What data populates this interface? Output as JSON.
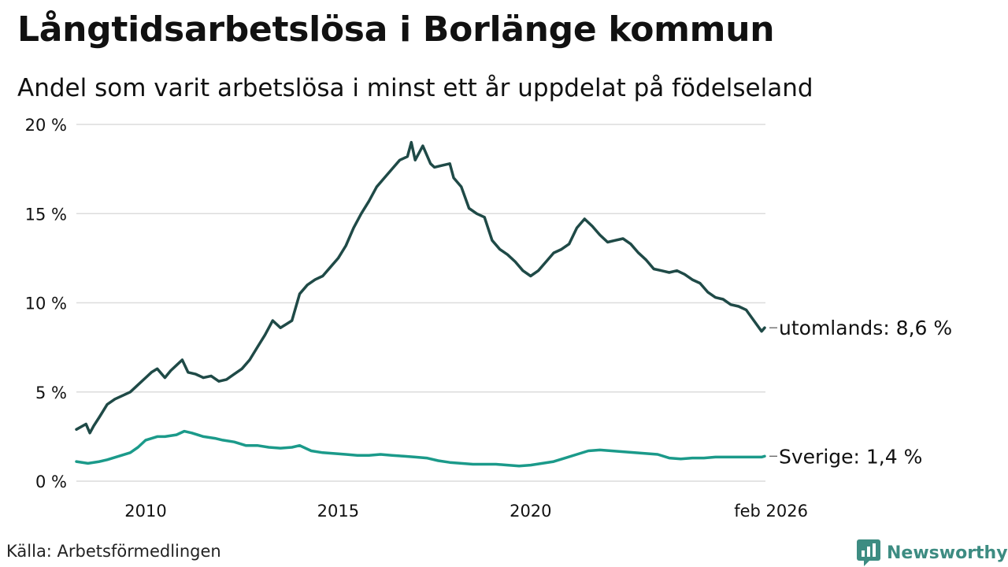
{
  "header": {
    "title": "Långtidsarbetslösa i Borlänge kommun",
    "subtitle": "Andel som varit arbetslösa i minst ett år uppdelat på födelseland"
  },
  "footer": {
    "source": "Källa: Arbetsförmedlingen",
    "brand": "Newsworthy"
  },
  "colors": {
    "utomlands": "#1f4a47",
    "sverige": "#1b9a8a",
    "grid": "#dcdcdc",
    "brand": "#3d8c82"
  },
  "chart_data": {
    "type": "line",
    "title": "Långtidsarbetslösa i Borlänge kommun",
    "ylabel": "",
    "xlabel": "",
    "ylim": [
      0,
      20
    ],
    "xlim": [
      2008.2,
      2026.1
    ],
    "yticks": [
      0,
      5,
      10,
      15,
      20
    ],
    "ytick_labels": [
      "0 %",
      "5 %",
      "10 %",
      "15 %",
      "20 %"
    ],
    "xticks": [
      2010,
      2015,
      2020,
      2026.08
    ],
    "xtick_labels": [
      "2010",
      "2015",
      "2020",
      "feb 2026"
    ],
    "grid": true,
    "series": [
      {
        "name": "utomlands",
        "end_label": "utomlands: 8,6 %",
        "x": [
          2008.2,
          2008.45,
          2008.55,
          2008.65,
          2008.8,
          2009.0,
          2009.2,
          2009.4,
          2009.6,
          2009.8,
          2010.0,
          2010.15,
          2010.3,
          2010.5,
          2010.65,
          2010.8,
          2010.95,
          2011.1,
          2011.3,
          2011.5,
          2011.7,
          2011.9,
          2012.1,
          2012.3,
          2012.5,
          2012.7,
          2012.9,
          2013.1,
          2013.3,
          2013.5,
          2013.65,
          2013.8,
          2014.0,
          2014.2,
          2014.4,
          2014.6,
          2014.8,
          2015.0,
          2015.2,
          2015.4,
          2015.6,
          2015.8,
          2016.0,
          2016.2,
          2016.4,
          2016.6,
          2016.8,
          2016.9,
          2017.0,
          2017.2,
          2017.4,
          2017.5,
          2017.7,
          2017.9,
          2018.0,
          2018.2,
          2018.4,
          2018.6,
          2018.8,
          2019.0,
          2019.2,
          2019.4,
          2019.6,
          2019.8,
          2020.0,
          2020.2,
          2020.4,
          2020.6,
          2020.8,
          2021.0,
          2021.2,
          2021.4,
          2021.6,
          2021.8,
          2022.0,
          2022.2,
          2022.4,
          2022.6,
          2022.8,
          2023.0,
          2023.2,
          2023.4,
          2023.6,
          2023.8,
          2024.0,
          2024.2,
          2024.4,
          2024.6,
          2024.8,
          2025.0,
          2025.2,
          2025.4,
          2025.6,
          2025.8,
          2026.0,
          2026.08
        ],
        "values": [
          2.9,
          3.2,
          2.7,
          3.1,
          3.6,
          4.3,
          4.6,
          4.8,
          5.0,
          5.4,
          5.8,
          6.1,
          6.3,
          5.8,
          6.2,
          6.5,
          6.8,
          6.1,
          6.0,
          5.8,
          5.9,
          5.6,
          5.7,
          6.0,
          6.3,
          6.8,
          7.5,
          8.2,
          9.0,
          8.6,
          8.8,
          9.0,
          10.5,
          11.0,
          11.3,
          11.5,
          12.0,
          12.5,
          13.2,
          14.2,
          15.0,
          15.7,
          16.5,
          17.0,
          17.5,
          18.0,
          18.2,
          19.0,
          18.0,
          18.8,
          17.8,
          17.6,
          17.7,
          17.8,
          17.0,
          16.5,
          15.3,
          15.0,
          14.8,
          13.5,
          13.0,
          12.7,
          12.3,
          11.8,
          11.5,
          11.8,
          12.3,
          12.8,
          13.0,
          13.3,
          14.2,
          14.7,
          14.3,
          13.8,
          13.4,
          13.5,
          13.6,
          13.3,
          12.8,
          12.4,
          11.9,
          11.8,
          11.7,
          11.8,
          11.6,
          11.3,
          11.1,
          10.6,
          10.3,
          10.2,
          9.9,
          9.8,
          9.6,
          9.0,
          8.4,
          8.6
        ]
      },
      {
        "name": "Sverige",
        "end_label": "Sverige: 1,4 %",
        "x": [
          2008.2,
          2008.5,
          2008.8,
          2009.0,
          2009.3,
          2009.6,
          2009.8,
          2010.0,
          2010.3,
          2010.5,
          2010.8,
          2011.0,
          2011.2,
          2011.5,
          2011.8,
          2012.0,
          2012.3,
          2012.6,
          2012.9,
          2013.2,
          2013.5,
          2013.8,
          2014.0,
          2014.3,
          2014.6,
          2014.9,
          2015.2,
          2015.5,
          2015.8,
          2016.1,
          2016.4,
          2016.7,
          2017.0,
          2017.3,
          2017.6,
          2017.9,
          2018.2,
          2018.5,
          2018.8,
          2019.1,
          2019.4,
          2019.7,
          2020.0,
          2020.3,
          2020.6,
          2020.9,
          2021.2,
          2021.5,
          2021.8,
          2022.1,
          2022.4,
          2022.7,
          2023.0,
          2023.3,
          2023.6,
          2023.9,
          2024.2,
          2024.5,
          2024.8,
          2025.1,
          2025.4,
          2025.7,
          2026.0,
          2026.08
        ],
        "values": [
          1.1,
          1.0,
          1.1,
          1.2,
          1.4,
          1.6,
          1.9,
          2.3,
          2.5,
          2.5,
          2.6,
          2.8,
          2.7,
          2.5,
          2.4,
          2.3,
          2.2,
          2.0,
          2.0,
          1.9,
          1.85,
          1.9,
          2.0,
          1.7,
          1.6,
          1.55,
          1.5,
          1.45,
          1.45,
          1.5,
          1.45,
          1.4,
          1.35,
          1.3,
          1.15,
          1.05,
          1.0,
          0.95,
          0.95,
          0.95,
          0.9,
          0.85,
          0.9,
          1.0,
          1.1,
          1.3,
          1.5,
          1.7,
          1.75,
          1.7,
          1.65,
          1.6,
          1.55,
          1.5,
          1.3,
          1.25,
          1.3,
          1.3,
          1.35,
          1.35,
          1.35,
          1.35,
          1.35,
          1.4
        ]
      }
    ]
  }
}
